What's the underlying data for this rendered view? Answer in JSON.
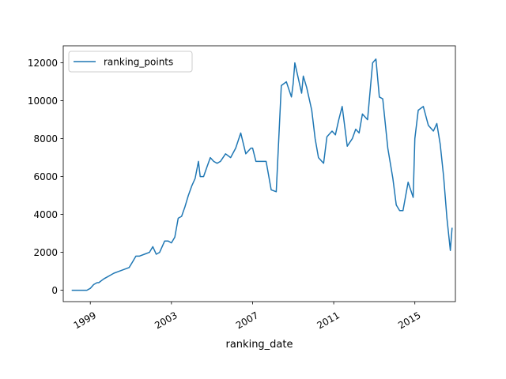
{
  "chart_data": {
    "type": "line",
    "xlabel": "ranking_date",
    "ylabel": "",
    "x_ticks": [
      "1999",
      "2003",
      "2007",
      "2011",
      "2015"
    ],
    "y_ticks": [
      "0",
      "2000",
      "4000",
      "6000",
      "8000",
      "10000",
      "12000"
    ],
    "xlim": [
      "1997-09-01",
      "2016-12-31"
    ],
    "ylim": [
      -600,
      12900
    ],
    "grid": false,
    "legend_position": "top-left",
    "colors": {
      "series": "#1f77b4",
      "axis": "#000000",
      "background": "#ffffff"
    },
    "series": [
      {
        "name": "ranking_points",
        "x": [
          "1998-02-01",
          "1998-07-01",
          "1998-09-01",
          "1998-11-01",
          "1999-01-01",
          "1999-03-01",
          "1999-05-01",
          "1999-06-01",
          "1999-09-01",
          "1999-11-01",
          "2000-01-01",
          "2000-03-01",
          "2000-06-01",
          "2000-09-01",
          "2000-12-01",
          "2001-02-01",
          "2001-04-01",
          "2001-06-01",
          "2001-09-01",
          "2001-12-01",
          "2002-02-01",
          "2002-04-01",
          "2002-06-01",
          "2002-09-01",
          "2002-11-01",
          "2003-01-01",
          "2003-03-01",
          "2003-05-01",
          "2003-07-01",
          "2003-09-01",
          "2003-11-01",
          "2004-01-01",
          "2004-03-01",
          "2004-05-01",
          "2004-06-01",
          "2004-08-01",
          "2004-10-01",
          "2004-12-01",
          "2005-02-01",
          "2005-04-01",
          "2005-06-01",
          "2005-09-01",
          "2005-12-01",
          "2006-03-01",
          "2006-06-01",
          "2006-09-01",
          "2006-12-01",
          "2007-01-01",
          "2007-03-01",
          "2007-06-01",
          "2007-09-01",
          "2007-12-01",
          "2008-03-01",
          "2008-06-01",
          "2008-09-01",
          "2008-12-01",
          "2009-01-01",
          "2009-02-01",
          "2009-04-01",
          "2009-06-01",
          "2009-07-01",
          "2009-09-01",
          "2009-12-01",
          "2010-02-01",
          "2010-04-01",
          "2010-06-01",
          "2010-07-01",
          "2010-09-01",
          "2010-12-01",
          "2011-02-01",
          "2011-04-01",
          "2011-06-01",
          "2011-09-01",
          "2011-12-01",
          "2012-02-01",
          "2012-04-01",
          "2012-06-01",
          "2012-09-01",
          "2012-12-01",
          "2013-02-01",
          "2013-04-01",
          "2013-06-01",
          "2013-09-01",
          "2013-12-01",
          "2014-02-01",
          "2014-04-01",
          "2014-06-01",
          "2014-09-01",
          "2014-12-01",
          "2015-01-01",
          "2015-03-01",
          "2015-06-01",
          "2015-09-01",
          "2015-12-01",
          "2016-02-01",
          "2016-04-01",
          "2016-06-01",
          "2016-08-01",
          "2016-10-01",
          "2016-11-01"
        ],
        "values": [
          0,
          0,
          0,
          0,
          100,
          300,
          400,
          400,
          600,
          700,
          800,
          900,
          1000,
          1100,
          1200,
          1500,
          1800,
          1800,
          1900,
          2000,
          2300,
          1900,
          2000,
          2600,
          2600,
          2500,
          2800,
          3800,
          3900,
          4400,
          5000,
          5500,
          5900,
          6800,
          6000,
          6000,
          6500,
          7000,
          6800,
          6700,
          6800,
          7200,
          7000,
          7500,
          8300,
          7200,
          7500,
          7500,
          6800,
          6800,
          6800,
          5300,
          5200,
          10800,
          11000,
          10200,
          10900,
          12000,
          11200,
          10400,
          11300,
          10700,
          9500,
          8000,
          7000,
          6800,
          6700,
          8100,
          8400,
          8200,
          9000,
          9700,
          7600,
          8000,
          8500,
          8300,
          9300,
          9000,
          12000,
          12200,
          10200,
          10100,
          7500,
          5900,
          4500,
          4200,
          4200,
          5700,
          4900,
          8000,
          9500,
          9700,
          8700,
          8400,
          8800,
          7700,
          6000,
          3800,
          2100,
          3300
        ]
      }
    ]
  }
}
